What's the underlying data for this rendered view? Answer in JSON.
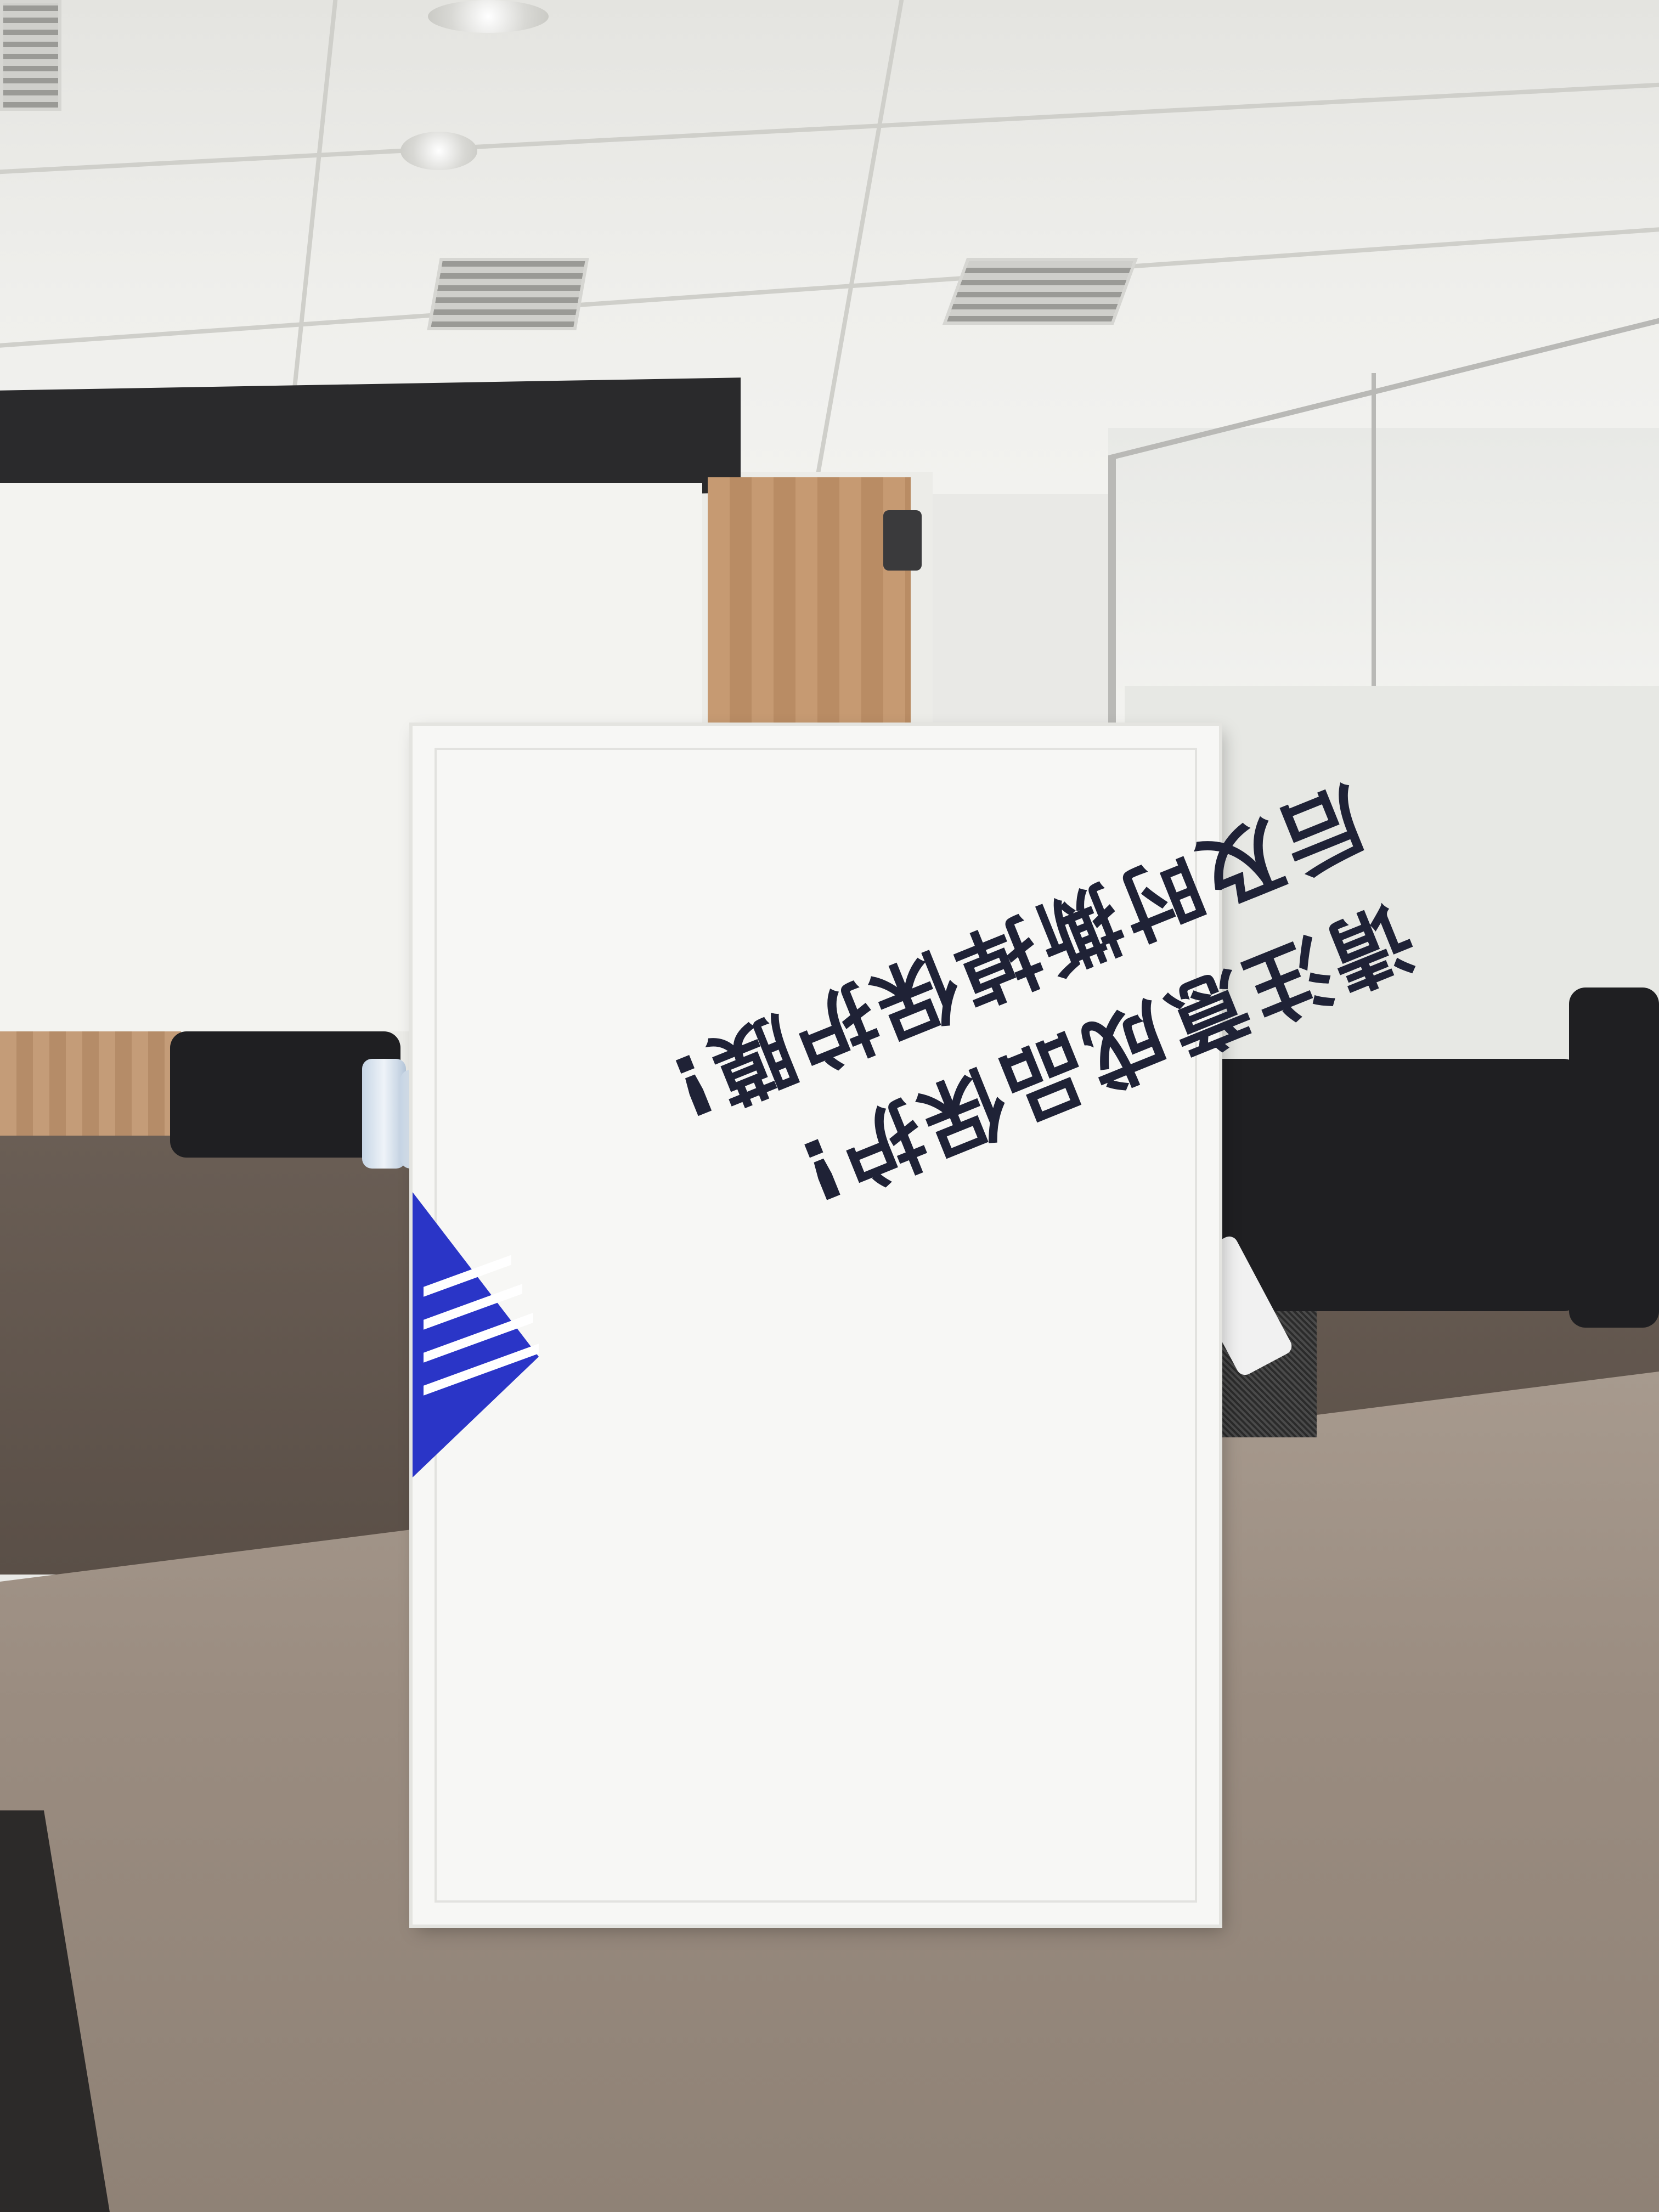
{
  "photo": {
    "subject": "",
    "protective_film_text": {
      "line1": "请注意成品保护!",
      "line2": "后及时撕掉保护膜!"
    }
  }
}
